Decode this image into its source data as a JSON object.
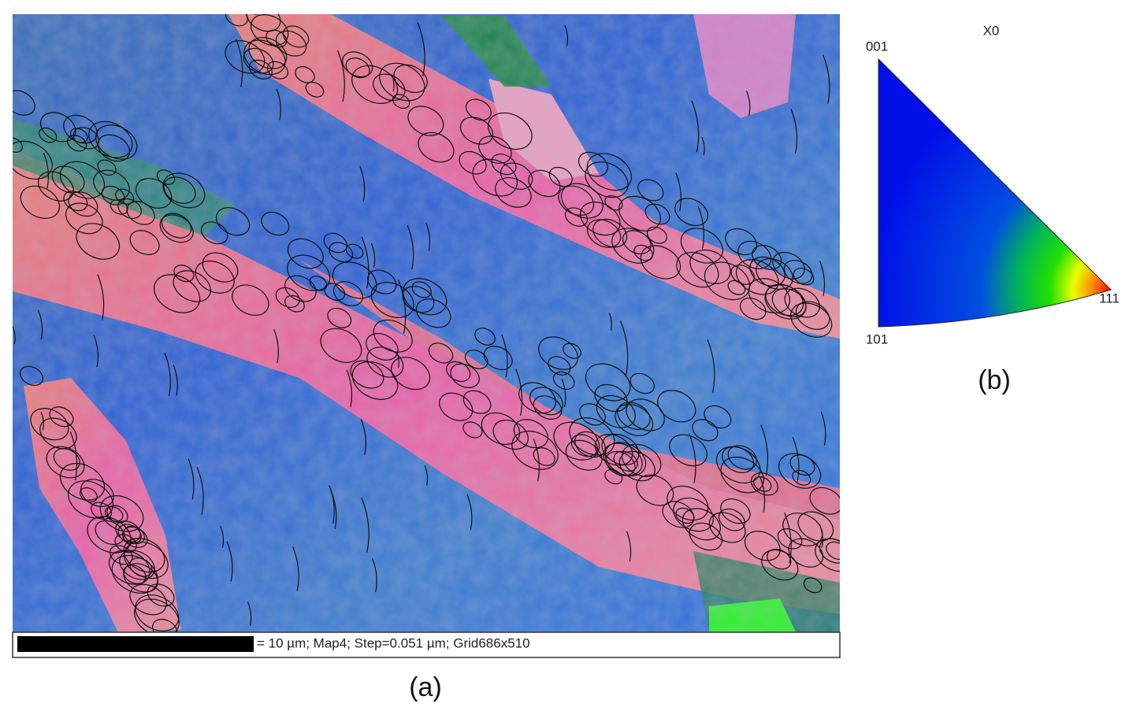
{
  "map": {
    "scale_bar_label": "= 10 µm; Map4; Step=0.051 µm; Grid686x510",
    "caption": "(a)"
  },
  "legend": {
    "title": "X0",
    "corners": [
      "001",
      "101",
      "111"
    ],
    "caption": "(b)"
  }
}
